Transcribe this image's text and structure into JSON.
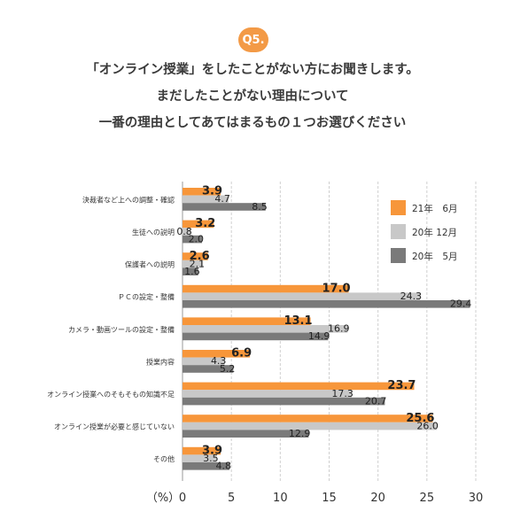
{
  "question_badge": "Q5.",
  "title_lines": [
    "「オンライン授業」をしたことがない方にお聞きします。",
    "まだしたことがない理由について",
    "一番の理由としてあてはまるもの１つお選びください"
  ],
  "colors": {
    "s21_6": "#f7963a",
    "s20_12": "#c8c8c8",
    "s20_5": "#7a7a7a",
    "grid": "#cfcfcf",
    "badge": "#f39a46"
  },
  "chart_data": {
    "type": "bar",
    "orientation": "horizontal",
    "categories": [
      "決裁者など上への調整・確認",
      "生徒への説明",
      "保護者への説明",
      "ＰＣの設定・整備",
      "カメラ・動画ツールの設定・整備",
      "授業内容",
      "オンライン授業へのそもそもの知識不足",
      "オンライン授業が必要と感じていない",
      "その他"
    ],
    "series": [
      {
        "name": "21年　6月",
        "color": "#f7963a",
        "values": [
          3.9,
          3.2,
          2.6,
          17.0,
          13.1,
          6.9,
          23.7,
          25.6,
          3.9
        ]
      },
      {
        "name": "20年 12月",
        "color": "#c8c8c8",
        "values": [
          4.7,
          0.8,
          2.1,
          24.3,
          16.9,
          4.3,
          17.3,
          26.0,
          3.5
        ]
      },
      {
        "name": "20年　5月",
        "color": "#7a7a7a",
        "values": [
          8.5,
          2.0,
          1.6,
          29.4,
          14.9,
          5.2,
          20.7,
          12.9,
          4.8
        ]
      }
    ],
    "value_labels": [
      [
        "3.9",
        "4.7",
        "8.5"
      ],
      [
        "3.2",
        "0.8",
        "2.0"
      ],
      [
        "2.6",
        "2.1",
        "1.6"
      ],
      [
        "17.0",
        "24.3",
        "29.4"
      ],
      [
        "13.1",
        "16.9",
        "14.9"
      ],
      [
        "6.9",
        "4.3",
        "5.2"
      ],
      [
        "23.7",
        "17.3",
        "20.7"
      ],
      [
        "25.6",
        "26.0",
        "12.9"
      ],
      [
        "3.9",
        "3.5",
        "4.8"
      ]
    ],
    "x_ticks": [
      "0",
      "5",
      "10",
      "15",
      "20",
      "25",
      "30"
    ],
    "x_unit_label": "（%）",
    "xlim": [
      0,
      30
    ],
    "grid": true,
    "legend_position": "top-right"
  }
}
